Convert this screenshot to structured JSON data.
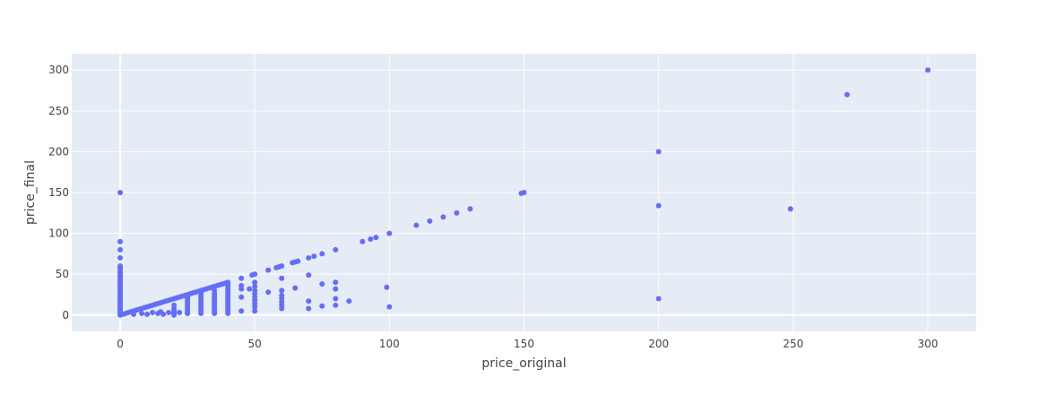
{
  "chart_data": {
    "type": "scatter",
    "title": "",
    "xlabel": "price_original",
    "ylabel": "price_final",
    "xlim": [
      -18,
      318
    ],
    "ylim": [
      -20,
      320
    ],
    "xticks": [
      0,
      50,
      100,
      150,
      200,
      250,
      300
    ],
    "yticks": [
      0,
      50,
      100,
      150,
      200,
      250,
      300
    ],
    "grid": true,
    "legend": "none",
    "colors": {
      "marker": "#636efa",
      "plot_bg": "#e5ecf6",
      "grid": "#ffffff",
      "text": "#444444"
    },
    "series": [
      {
        "points": [
          [
            0,
            0
          ],
          [
            0,
            2
          ],
          [
            0,
            4
          ],
          [
            0,
            6
          ],
          [
            0,
            8
          ],
          [
            0,
            10
          ],
          [
            0,
            12
          ],
          [
            0,
            14
          ],
          [
            0,
            16
          ],
          [
            0,
            18
          ],
          [
            0,
            20
          ],
          [
            0,
            22
          ],
          [
            0,
            25
          ],
          [
            0,
            28
          ],
          [
            0,
            30
          ],
          [
            0,
            33
          ],
          [
            0,
            35
          ],
          [
            0,
            38
          ],
          [
            0,
            40
          ],
          [
            0,
            42
          ],
          [
            0,
            45
          ],
          [
            0,
            48
          ],
          [
            0,
            50
          ],
          [
            0,
            52
          ],
          [
            0,
            55
          ],
          [
            0,
            58
          ],
          [
            0,
            60
          ],
          [
            0,
            70
          ],
          [
            0,
            80
          ],
          [
            0,
            90
          ],
          [
            0,
            150
          ],
          [
            1,
            1
          ],
          [
            2,
            2
          ],
          [
            3,
            3
          ],
          [
            4,
            4
          ],
          [
            5,
            5
          ],
          [
            6,
            6
          ],
          [
            7,
            7
          ],
          [
            8,
            8
          ],
          [
            9,
            9
          ],
          [
            10,
            10
          ],
          [
            11,
            11
          ],
          [
            12,
            12
          ],
          [
            13,
            13
          ],
          [
            14,
            14
          ],
          [
            15,
            15
          ],
          [
            16,
            16
          ],
          [
            17,
            17
          ],
          [
            18,
            18
          ],
          [
            19,
            19
          ],
          [
            20,
            20
          ],
          [
            21,
            21
          ],
          [
            22,
            22
          ],
          [
            23,
            23
          ],
          [
            24,
            24
          ],
          [
            25,
            25
          ],
          [
            26,
            26
          ],
          [
            27,
            27
          ],
          [
            28,
            28
          ],
          [
            29,
            29
          ],
          [
            30,
            30
          ],
          [
            31,
            31
          ],
          [
            32,
            32
          ],
          [
            33,
            33
          ],
          [
            34,
            34
          ],
          [
            35,
            35
          ],
          [
            36,
            36
          ],
          [
            37,
            37
          ],
          [
            38,
            38
          ],
          [
            39,
            39
          ],
          [
            40,
            40
          ],
          [
            5,
            1
          ],
          [
            8,
            2
          ],
          [
            10,
            1
          ],
          [
            12,
            3
          ],
          [
            14,
            2
          ],
          [
            15,
            4
          ],
          [
            16,
            1
          ],
          [
            18,
            3
          ],
          [
            20,
            2
          ],
          [
            20,
            5
          ],
          [
            22,
            3
          ],
          [
            25,
            2
          ],
          [
            20,
            0
          ],
          [
            20,
            4
          ],
          [
            20,
            8
          ],
          [
            20,
            12
          ],
          [
            25,
            2
          ],
          [
            25,
            5
          ],
          [
            25,
            8
          ],
          [
            25,
            11
          ],
          [
            25,
            14
          ],
          [
            25,
            17
          ],
          [
            25,
            20
          ],
          [
            25,
            22
          ],
          [
            30,
            2
          ],
          [
            30,
            5
          ],
          [
            30,
            8
          ],
          [
            30,
            11
          ],
          [
            30,
            14
          ],
          [
            30,
            17
          ],
          [
            30,
            20
          ],
          [
            30,
            23
          ],
          [
            30,
            26
          ],
          [
            35,
            2
          ],
          [
            35,
            5
          ],
          [
            35,
            8
          ],
          [
            35,
            11
          ],
          [
            35,
            14
          ],
          [
            35,
            17
          ],
          [
            35,
            20
          ],
          [
            35,
            23
          ],
          [
            35,
            26
          ],
          [
            35,
            30
          ],
          [
            40,
            2
          ],
          [
            40,
            5
          ],
          [
            40,
            8
          ],
          [
            40,
            11
          ],
          [
            40,
            14
          ],
          [
            40,
            17
          ],
          [
            40,
            20
          ],
          [
            40,
            23
          ],
          [
            40,
            26
          ],
          [
            40,
            29
          ],
          [
            40,
            32
          ],
          [
            40,
            35
          ],
          [
            40,
            38
          ],
          [
            45,
            5
          ],
          [
            45,
            22
          ],
          [
            45,
            32
          ],
          [
            45,
            36
          ],
          [
            45,
            45
          ],
          [
            48,
            32
          ],
          [
            49,
            49
          ],
          [
            50,
            5
          ],
          [
            50,
            10
          ],
          [
            50,
            14
          ],
          [
            50,
            18
          ],
          [
            50,
            22
          ],
          [
            50,
            26
          ],
          [
            50,
            30
          ],
          [
            50,
            35
          ],
          [
            50,
            40
          ],
          [
            50,
            50
          ],
          [
            55,
            28
          ],
          [
            55,
            55
          ],
          [
            58,
            58
          ],
          [
            59,
            59
          ],
          [
            60,
            8
          ],
          [
            60,
            12
          ],
          [
            60,
            16
          ],
          [
            60,
            20
          ],
          [
            60,
            24
          ],
          [
            60,
            30
          ],
          [
            60,
            45
          ],
          [
            60,
            60
          ],
          [
            64,
            64
          ],
          [
            65,
            33
          ],
          [
            65,
            65
          ],
          [
            66,
            66
          ],
          [
            70,
            8
          ],
          [
            70,
            17
          ],
          [
            70,
            49
          ],
          [
            70,
            70
          ],
          [
            72,
            72
          ],
          [
            75,
            11
          ],
          [
            75,
            38
          ],
          [
            75,
            75
          ],
          [
            80,
            12
          ],
          [
            80,
            20
          ],
          [
            80,
            32
          ],
          [
            80,
            40
          ],
          [
            80,
            80
          ],
          [
            85,
            17
          ],
          [
            90,
            90
          ],
          [
            93,
            93
          ],
          [
            95,
            95
          ],
          [
            99,
            34
          ],
          [
            100,
            10
          ],
          [
            100,
            100
          ],
          [
            110,
            110
          ],
          [
            115,
            115
          ],
          [
            120,
            120
          ],
          [
            125,
            125
          ],
          [
            130,
            130
          ],
          [
            149,
            149
          ],
          [
            150,
            150
          ],
          [
            200,
            20
          ],
          [
            200,
            134
          ],
          [
            200,
            200
          ],
          [
            249,
            130
          ],
          [
            270,
            270
          ],
          [
            300,
            300
          ]
        ]
      }
    ]
  }
}
